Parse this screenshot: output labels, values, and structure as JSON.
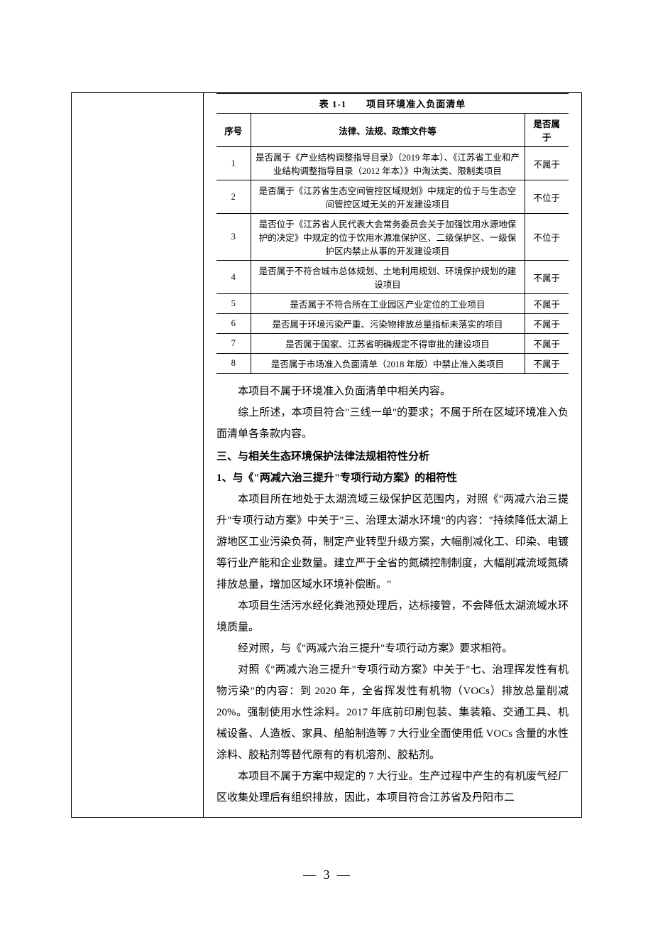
{
  "table": {
    "caption": "表 1-1　　项目环境准入负面清单",
    "headers": {
      "idx": "序号",
      "law": "法律、法规、政策文件等",
      "result": "是否属于"
    },
    "rows": [
      {
        "idx": "1",
        "law": "是否属于《产业结构调整指导目录》（2019 年本）、《江苏省工业和产业结构调整指导目录（2012 年本）》中淘汰类、限制类项目",
        "result": "不属于"
      },
      {
        "idx": "2",
        "law": "是否属于《江苏省生态空间管控区域规划》中规定的位于与生态空间管控区域无关的开发建设项目",
        "result": "不位于"
      },
      {
        "idx": "3",
        "law": "是否位于《江苏省人民代表大会常务委员会关于加强饮用水源地保护的决定》中规定的位于饮用水源准保护区、二级保护区、一级保护区内禁止从事的开发建设项目",
        "result": "不位于"
      },
      {
        "idx": "4",
        "law": "是否属于不符合城市总体规划、土地利用规划、环境保护规划的建设项目",
        "result": "不属于"
      },
      {
        "idx": "5",
        "law": "是否属于不符合所在工业园区产业定位的工业项目",
        "result": "不属于"
      },
      {
        "idx": "6",
        "law": "是否属于环境污染严重、污染物排放总量指标未落实的项目",
        "result": "不属于"
      },
      {
        "idx": "7",
        "law": "是否属于国家、江苏省明确规定不得审批的建设项目",
        "result": "不属于"
      },
      {
        "idx": "8",
        "law": "是否属于市场准入负面清单（2018 年版）中禁止准入类项目",
        "result": "不属于"
      }
    ]
  },
  "paragraphs": {
    "p1": "本项目不属于环境准入负面清单中相关内容。",
    "p2": "综上所述，本项目符合\"三线一单\"的要求；不属于所在区域环境准入负面清单各条款内容。",
    "h3": "三、与相关生态环境保护法律法规相符性分析",
    "h3_1": "1、与《\"两减六治三提升\"专项行动方案》的相符性",
    "p3": "本项目所在地处于太湖流域三级保护区范围内，对照《\"两减六治三提升\"专项行动方案》中关于\"三、治理太湖水环境\"的内容：\"持续降低太湖上游地区工业污染负荷，制定产业转型升级方案，大幅削减化工、印染、电镀等行业产能和企业数量。建立严于全省的氮磷控制制度，大幅削减流域氮磷排放总量，增加区域水环境补偿断。\"",
    "p4": "本项目生活污水经化粪池预处理后，达标接管，不会降低太湖流域水环境质量。",
    "p5": "经对照，与《\"两减六治三提升\"专项行动方案》要求相符。",
    "p6": "对照《\"两减六治三提升\"专项行动方案》中关于\"七、治理挥发性有机物污染\"的内容：到 2020 年，全省挥发性有机物（VOCs）排放总量削减 20%。强制使用水性涂料。2017 年底前印刷包装、集装箱、交通工具、机械设备、人造板、家具、船舶制造等 7 大行业全面使用低 VOCs 含量的水性涂料、胶粘剂等替代原有的有机溶剂、胶粘剂。",
    "p7": "本项目不属于方案中规定的 7 大行业。生产过程中产生的有机废气经厂区收集处理后有组织排放，因此，本项目符合江苏省及丹阳市二"
  },
  "pageNumber": "3"
}
